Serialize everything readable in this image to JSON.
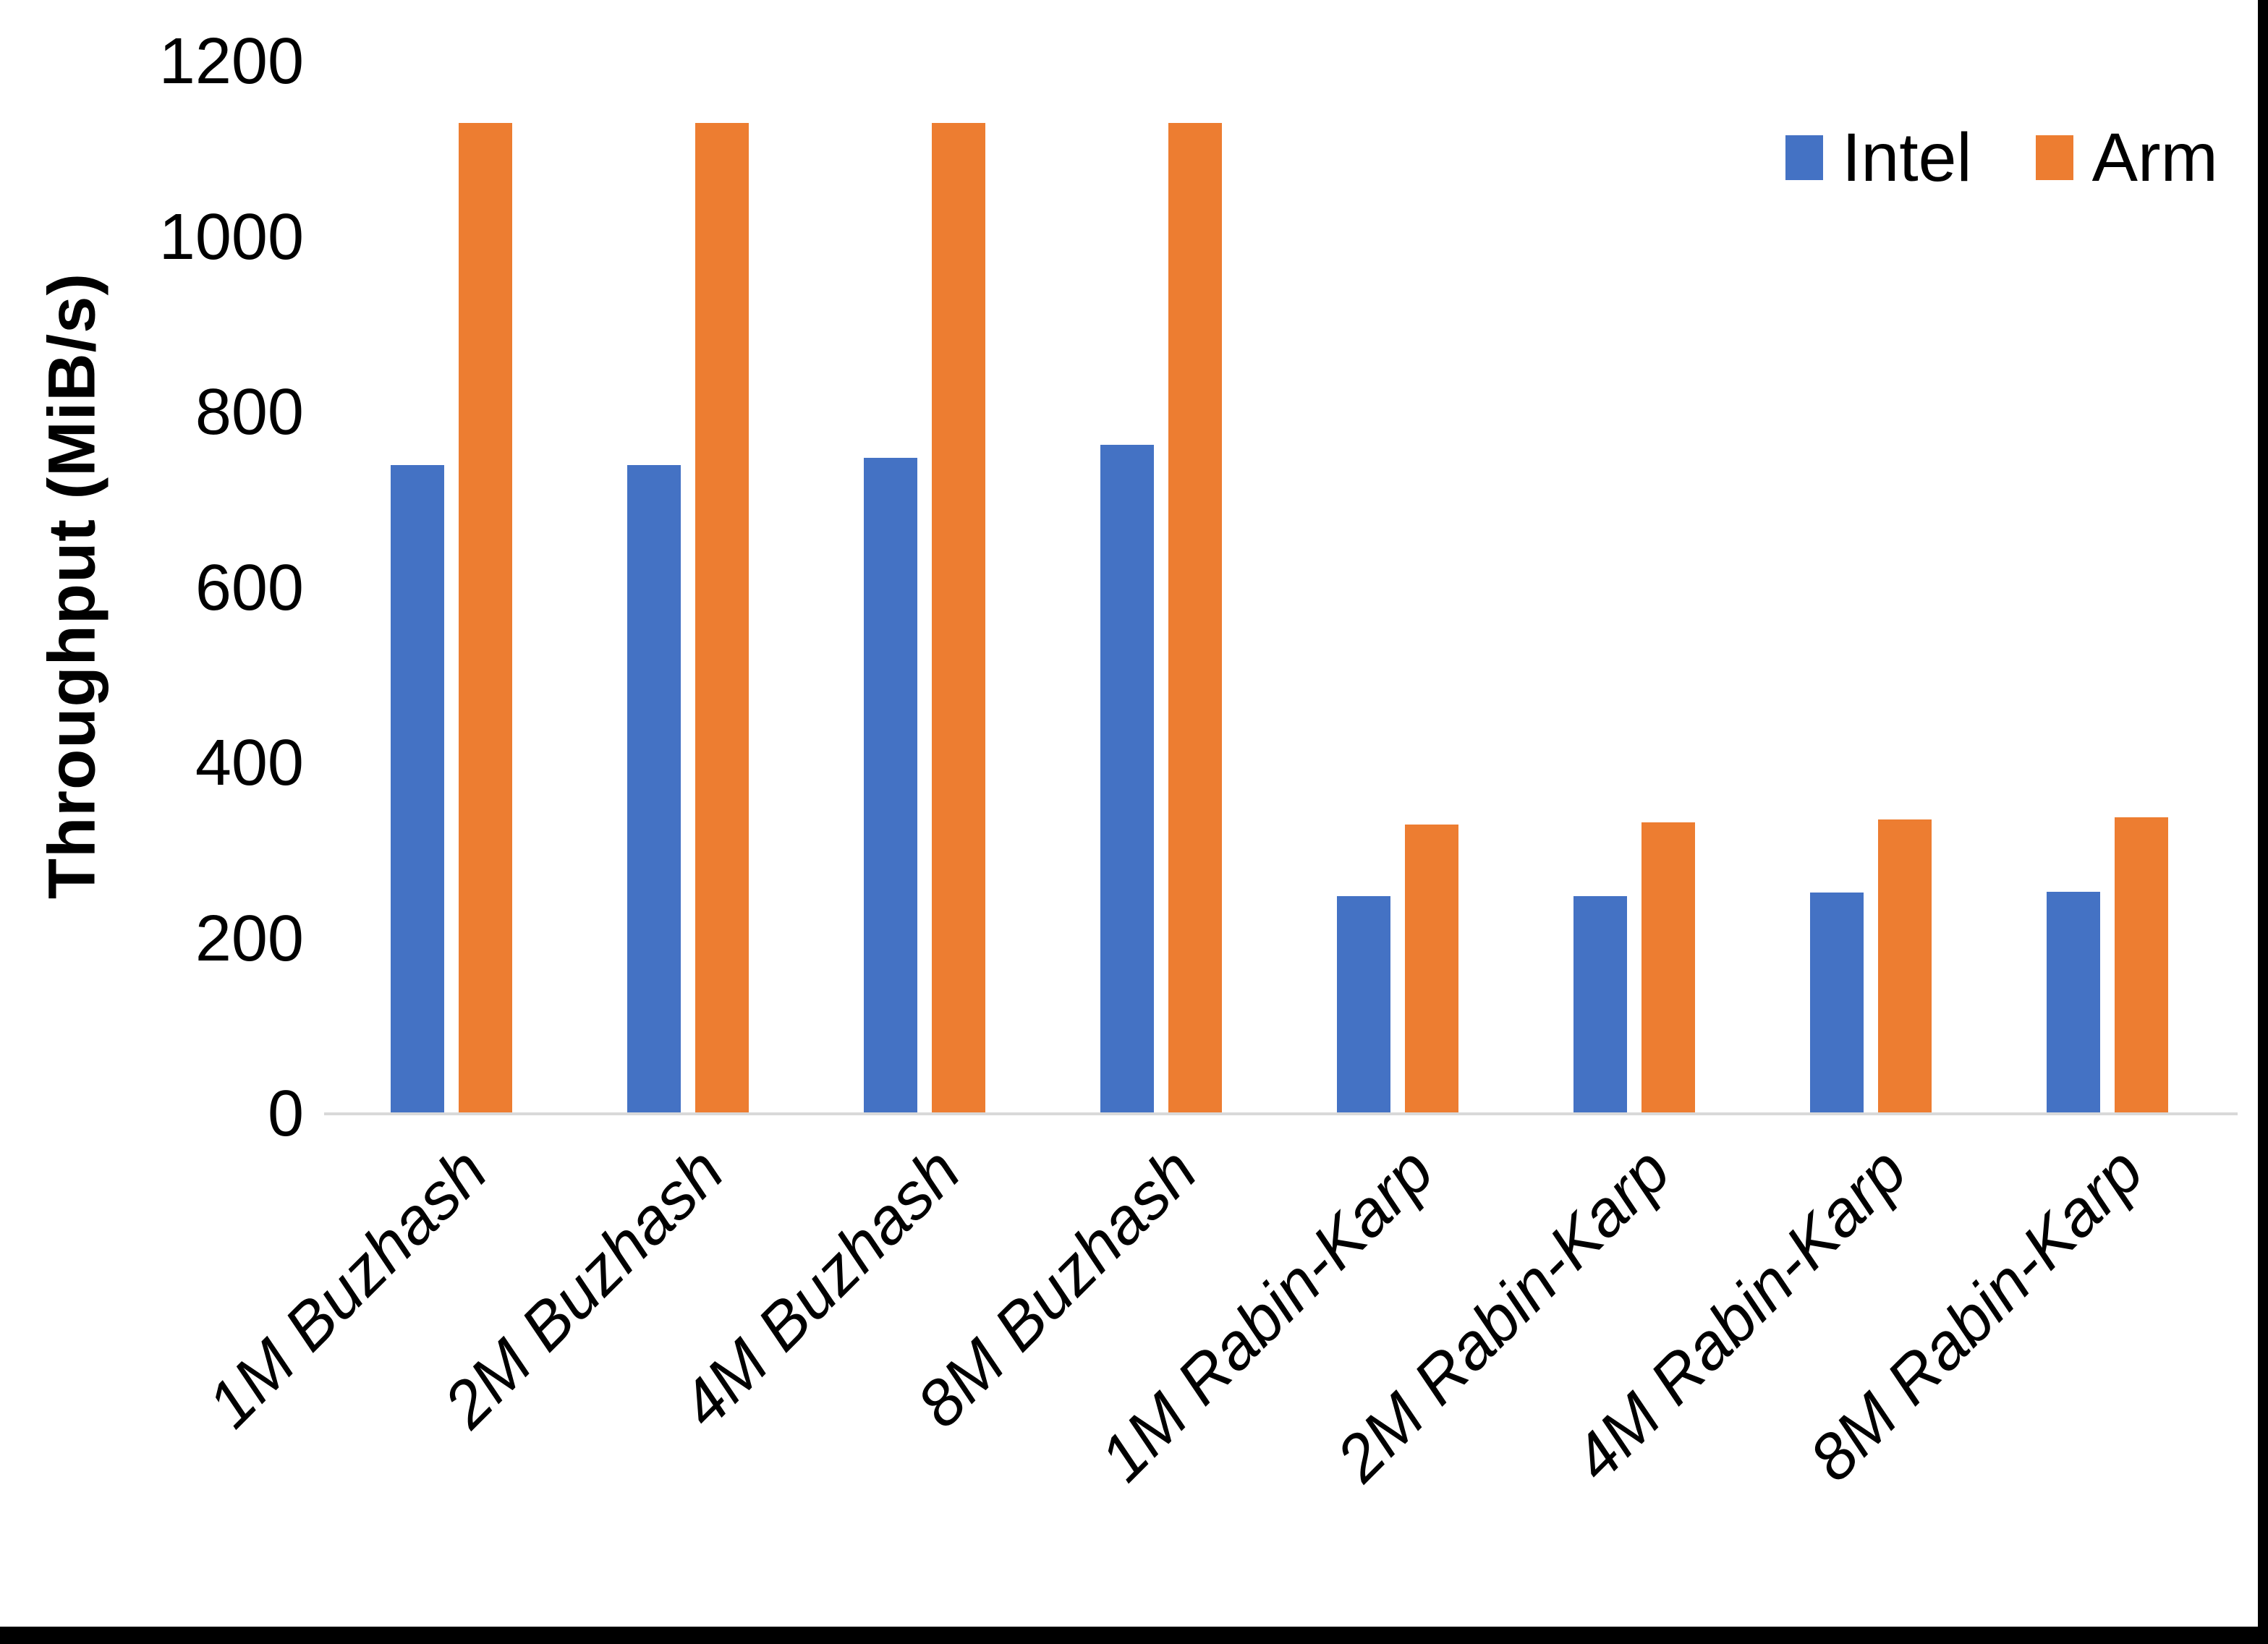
{
  "chart_data": {
    "type": "bar",
    "title": "",
    "xlabel": "",
    "ylabel": "Throughput (MiB/s)",
    "ylim": [
      0,
      1200
    ],
    "yticks": [
      0,
      200,
      400,
      600,
      800,
      1000,
      1200
    ],
    "grid": false,
    "legend_position": "top-right",
    "categories": [
      "1M Buzhash",
      "2M Buzhash",
      "4M Buzhash",
      "8M Buzhash",
      "1M Rabin-Karp",
      "2M Rabin-Karp",
      "4M Rabin-Karp",
      "8M Rabin-Karp"
    ],
    "series": [
      {
        "name": "Intel",
        "color": "#4472C4",
        "values": [
          740,
          740,
          748,
          763,
          248,
          248,
          252,
          253
        ]
      },
      {
        "name": "Arm",
        "color": "#ED7D31",
        "values": [
          1130,
          1130,
          1130,
          1130,
          330,
          332,
          336,
          338
        ]
      }
    ]
  },
  "colors": {
    "axis_line": "#D9D9D9",
    "text": "#000000",
    "frame": "#000000"
  }
}
